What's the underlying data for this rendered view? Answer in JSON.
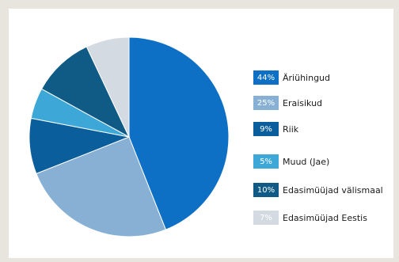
{
  "chart_data": {
    "type": "pie",
    "title": "",
    "slices": [
      {
        "label": "Äriühingud",
        "percent_label": "44%",
        "value": 44,
        "color": "#0d70c5"
      },
      {
        "label": "Eraisikud",
        "percent_label": "25%",
        "value": 25,
        "color": "#87b0d4"
      },
      {
        "label": "Riik",
        "percent_label": "9%",
        "value": 9,
        "color": "#0a5e9c"
      },
      {
        "label": "Muud (Jae)",
        "percent_label": "5%",
        "value": 5,
        "color": "#3da7d8"
      },
      {
        "label": "Edasimüüjad välismaal",
        "percent_label": "10%",
        "value": 10,
        "color": "#0f5b85"
      },
      {
        "label": "Edasimüüjad Eestis",
        "percent_label": "7%",
        "value": 7,
        "color": "#d3dae1"
      }
    ],
    "legend_position": "right"
  }
}
